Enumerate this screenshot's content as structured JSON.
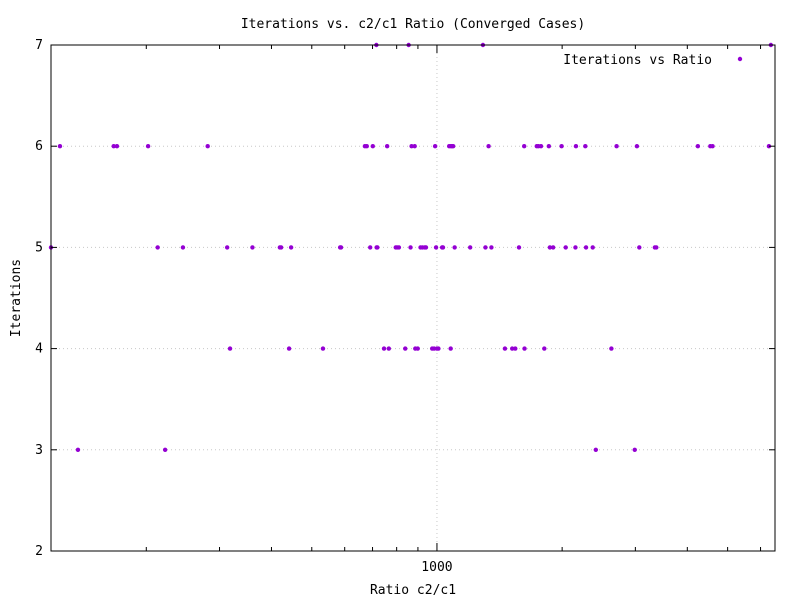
{
  "chart_data": {
    "type": "scatter",
    "title": "Iterations vs. c2/c1 Ratio (Converged Cases)",
    "xlabel": "Ratio c2/c1",
    "ylabel": "Iterations",
    "x_scale": "log",
    "xlim": [
      118,
      6500
    ],
    "ylim": [
      2,
      7
    ],
    "x_ticks": [
      1000
    ],
    "x_tick_labels": [
      "1000"
    ],
    "y_ticks": [
      2,
      3,
      4,
      5,
      6,
      7
    ],
    "y_tick_labels": [
      "2",
      "3",
      "4",
      "5",
      "6",
      "7"
    ],
    "grid": true,
    "legend_position": "top-right",
    "series": [
      {
        "name": "Iterations vs Ratio",
        "color": "#9400d3",
        "marker": "dot",
        "points": [
          [
            137,
            3
          ],
          [
            222,
            3
          ],
          [
            2410,
            3
          ],
          [
            2990,
            3
          ],
          [
            318,
            4
          ],
          [
            441,
            4
          ],
          [
            532,
            4
          ],
          [
            746,
            4
          ],
          [
            766,
            4
          ],
          [
            839,
            4
          ],
          [
            887,
            4
          ],
          [
            899,
            4
          ],
          [
            974,
            4
          ],
          [
            984,
            4
          ],
          [
            1000,
            4
          ],
          [
            1008,
            4
          ],
          [
            1079,
            4
          ],
          [
            1457,
            4
          ],
          [
            1517,
            4
          ],
          [
            1543,
            4
          ],
          [
            1624,
            4
          ],
          [
            1812,
            4
          ],
          [
            2627,
            4
          ],
          [
            118,
            5
          ],
          [
            213,
            5
          ],
          [
            245,
            5
          ],
          [
            313,
            5
          ],
          [
            360,
            5
          ],
          [
            419,
            5
          ],
          [
            422,
            5
          ],
          [
            446,
            5
          ],
          [
            585,
            5
          ],
          [
            588,
            5
          ],
          [
            691,
            5
          ],
          [
            716,
            5
          ],
          [
            719,
            5
          ],
          [
            796,
            5
          ],
          [
            802,
            5
          ],
          [
            810,
            5
          ],
          [
            864,
            5
          ],
          [
            913,
            5
          ],
          [
            923,
            5
          ],
          [
            935,
            5
          ],
          [
            941,
            5
          ],
          [
            995,
            5
          ],
          [
            1029,
            5
          ],
          [
            1034,
            5
          ],
          [
            1103,
            5
          ],
          [
            1202,
            5
          ],
          [
            1308,
            5
          ],
          [
            1352,
            5
          ],
          [
            1575,
            5
          ],
          [
            1869,
            5
          ],
          [
            1903,
            5
          ],
          [
            2040,
            5
          ],
          [
            2153,
            5
          ],
          [
            2283,
            5
          ],
          [
            2369,
            5
          ],
          [
            3066,
            5
          ],
          [
            3342,
            5
          ],
          [
            3369,
            5
          ],
          [
            124,
            6
          ],
          [
            167,
            6
          ],
          [
            170,
            6
          ],
          [
            202,
            6
          ],
          [
            281,
            6
          ],
          [
            671,
            6
          ],
          [
            678,
            6
          ],
          [
            701,
            6
          ],
          [
            759,
            6
          ],
          [
            869,
            6
          ],
          [
            884,
            6
          ],
          [
            990,
            6
          ],
          [
            1070,
            6
          ],
          [
            1080,
            6
          ],
          [
            1087,
            6
          ],
          [
            1094,
            6
          ],
          [
            1331,
            6
          ],
          [
            1621,
            6
          ],
          [
            1738,
            6
          ],
          [
            1755,
            6
          ],
          [
            1779,
            6
          ],
          [
            1858,
            6
          ],
          [
            1994,
            6
          ],
          [
            2159,
            6
          ],
          [
            2274,
            6
          ],
          [
            2704,
            6
          ],
          [
            3026,
            6
          ],
          [
            4240,
            6
          ],
          [
            4543,
            6
          ],
          [
            4600,
            6
          ],
          [
            6285,
            6
          ],
          [
            715,
            7
          ],
          [
            855,
            7
          ],
          [
            1290,
            7
          ],
          [
            6353,
            7
          ]
        ]
      }
    ]
  }
}
